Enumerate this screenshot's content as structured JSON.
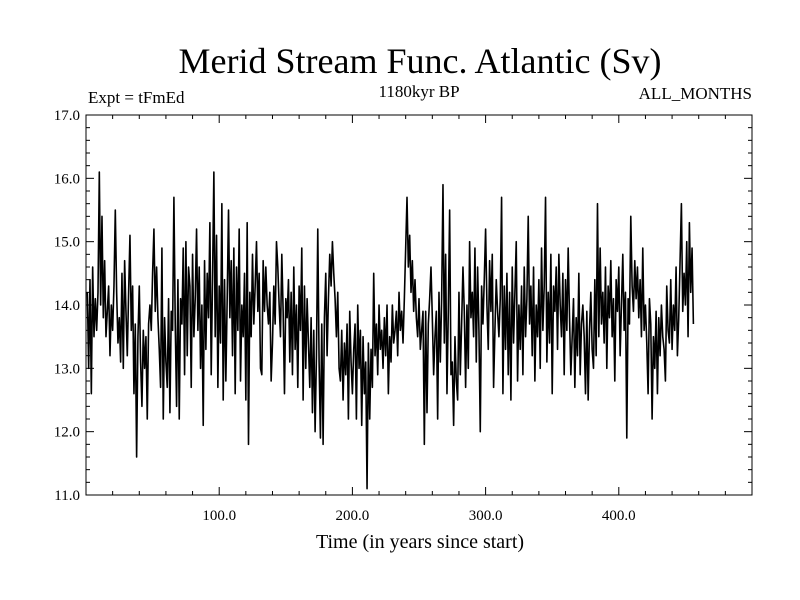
{
  "chart_data": {
    "type": "line",
    "title": "Merid Stream Func. Atlantic (Sv)",
    "subtitle_left": "Expt = tFmEd",
    "subtitle_center": "1180kyr BP",
    "subtitle_right": "ALL_MONTHS",
    "xlabel": "Time (in years since start)",
    "ylabel": "",
    "xlim": [
      0,
      500
    ],
    "ylim": [
      11.0,
      17.0
    ],
    "x_ticks": [
      100,
      200,
      300,
      400
    ],
    "x_tick_labels": [
      "100.0",
      "200.0",
      "300.0",
      "400.0"
    ],
    "y_ticks": [
      11,
      12,
      13,
      14,
      15,
      16,
      17
    ],
    "y_tick_labels": [
      "11.0",
      "12.0",
      "13.0",
      "14.0",
      "15.0",
      "16.0",
      "17.0"
    ],
    "series": [
      {
        "name": "Merid Stream Func. Atlantic",
        "x_start": 1,
        "x_step": 1,
        "values": [
          14.2,
          13.0,
          14.4,
          12.6,
          14.6,
          13.5,
          14.1,
          13.6,
          14.2,
          16.1,
          14.0,
          15.4,
          13.8,
          14.7,
          13.5,
          13.9,
          14.3,
          13.2,
          14.0,
          13.6,
          14.3,
          15.5,
          14.2,
          13.4,
          13.8,
          13.1,
          14.5,
          13.0,
          14.7,
          13.9,
          13.2,
          14.2,
          15.1,
          13.6,
          14.3,
          12.6,
          13.7,
          11.6,
          13.5,
          14.3,
          13.1,
          12.4,
          13.6,
          13.0,
          13.5,
          12.2,
          13.7,
          14.0,
          13.6,
          14.5,
          15.2,
          13.9,
          14.6,
          13.8,
          13.3,
          12.7,
          14.9,
          12.2,
          13.8,
          13.1,
          12.7,
          14.1,
          12.3,
          13.9,
          13.6,
          15.7,
          13.7,
          12.4,
          14.4,
          12.2,
          14.1,
          13.7,
          14.9,
          12.9,
          15.0,
          13.2,
          14.6,
          14.3,
          12.7,
          14.8,
          13.5,
          14.1,
          15.2,
          13.6,
          14.6,
          13.0,
          14.0,
          12.1,
          14.7,
          13.3,
          14.5,
          13.8,
          15.3,
          12.9,
          14.4,
          16.1,
          13.5,
          15.1,
          12.7,
          14.3,
          13.4,
          15.6,
          12.5,
          14.4,
          12.8,
          14.1,
          15.5,
          13.8,
          14.7,
          13.2,
          14.9,
          12.6,
          14.6,
          13.6,
          15.2,
          12.8,
          14.0,
          13.5,
          14.5,
          12.5,
          15.3,
          11.8,
          14.2,
          13.5,
          14.8,
          13.7,
          14.3,
          15.0,
          13.9,
          14.5,
          13.0,
          12.9,
          14.7,
          13.9,
          14.6,
          14.0,
          13.7,
          14.2,
          12.8,
          13.4,
          14.3,
          13.7,
          15.0,
          14.6,
          14.0,
          13.5,
          14.8,
          13.9,
          12.6,
          14.1,
          13.8,
          14.4,
          13.1,
          14.2,
          12.9,
          14.6,
          13.3,
          14.0,
          12.7,
          14.3,
          13.6,
          14.9,
          12.5,
          14.3,
          13.0,
          14.1,
          13.4,
          12.7,
          13.8,
          12.3,
          13.6,
          12.0,
          13.2,
          15.2,
          13.1,
          11.9,
          13.7,
          11.8,
          13.8,
          14.5,
          13.2,
          14.1,
          14.8,
          14.3,
          15.0,
          14.5,
          14.1,
          13.5,
          14.2,
          13.0,
          12.8,
          13.6,
          12.5,
          13.4,
          12.9,
          13.7,
          12.2,
          13.9,
          13.1,
          12.6,
          13.3,
          13.7,
          12.2,
          14.0,
          13.0,
          13.6,
          12.1,
          13.5,
          12.6,
          13.1,
          11.1,
          13.4,
          12.2,
          13.3,
          12.7,
          14.5,
          13.2,
          13.7,
          12.9,
          14.0,
          13.3,
          13.6,
          13.0,
          13.8,
          13.2,
          14.0,
          12.6,
          13.5,
          13.1,
          14.0,
          13.4,
          13.6,
          13.9,
          13.2,
          14.2,
          13.6,
          13.9,
          13.4,
          14.1,
          14.9,
          15.7,
          14.6,
          15.1,
          14.2,
          14.7,
          13.9,
          14.4,
          13.8,
          13.5,
          14.1,
          13.3,
          13.6,
          13.9,
          11.8,
          13.9,
          12.3,
          13.7,
          14.1,
          14.6,
          13.8,
          12.9,
          13.5,
          13.9,
          12.2,
          14.2,
          13.1,
          14.1,
          15.9,
          13.4,
          14.8,
          12.6,
          13.9,
          15.5,
          12.9,
          13.1,
          12.1,
          13.5,
          12.8,
          12.5,
          14.2,
          12.9,
          13.7,
          14.6,
          13.9,
          12.7,
          14.0,
          13.0,
          15.0,
          13.8,
          14.2,
          13.5,
          14.9,
          13.1,
          14.6,
          13.6,
          12.0,
          14.3,
          13.7,
          14.4,
          15.2,
          14.0,
          13.3,
          14.7,
          13.9,
          14.8,
          12.7,
          13.6,
          14.4,
          13.9,
          13.5,
          14.1,
          15.7,
          12.6,
          14.3,
          13.3,
          14.5,
          12.9,
          14.2,
          12.5,
          14.6,
          13.4,
          14.2,
          15.0,
          12.8,
          14.0,
          13.3,
          14.3,
          12.9,
          14.6,
          13.5,
          14.1,
          15.4,
          13.7,
          14.3,
          13.2,
          14.6,
          12.8,
          14.0,
          13.5,
          14.4,
          13.0,
          14.9,
          13.6,
          14.3,
          15.7,
          13.1,
          14.2,
          13.4,
          14.8,
          12.6,
          14.3,
          13.9,
          14.6,
          13.3,
          14.8,
          14.0,
          13.5,
          14.5,
          12.9,
          14.4,
          13.6,
          14.9,
          13.8,
          12.9,
          13.5,
          14.1,
          12.7,
          13.8,
          13.2,
          14.5,
          12.9,
          13.7,
          14.0,
          13.5,
          12.6,
          13.9,
          12.5,
          13.6,
          14.2,
          13.3,
          13.0,
          14.4,
          13.2,
          15.6,
          13.5,
          14.9,
          13.7,
          14.2,
          13.4,
          14.6,
          13.0,
          14.3,
          13.8,
          14.7,
          13.5,
          14.1,
          12.8,
          14.4,
          13.9,
          14.6,
          13.2,
          14.0,
          14.8,
          13.6,
          14.2,
          11.9,
          14.1,
          13.7,
          15.4,
          14.3,
          13.9,
          14.7,
          14.1,
          14.6,
          13.8,
          14.4,
          13.5,
          14.9,
          13.6,
          14.0,
          13.4,
          12.6,
          14.1,
          13.7,
          12.2,
          13.5,
          13.0,
          13.9,
          12.6,
          13.8,
          13.2,
          14.0,
          13.5,
          13.3,
          12.8,
          14.3,
          13.6,
          13.4,
          14.4,
          13.3,
          14.0,
          13.6,
          14.6,
          13.2,
          13.8,
          14.7,
          15.6,
          13.9,
          14.5,
          14.0,
          15.0,
          13.5,
          15.3,
          14.2,
          14.9,
          13.7
        ]
      }
    ]
  }
}
